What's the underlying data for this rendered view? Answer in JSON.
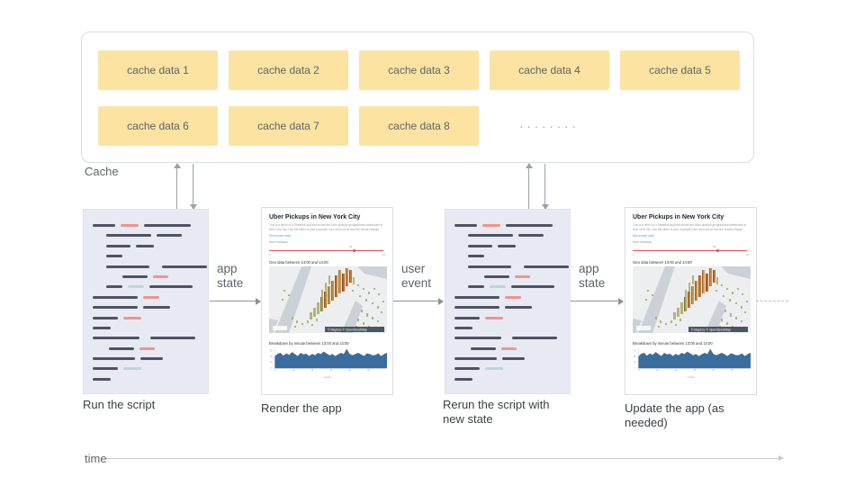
{
  "cache": {
    "label": "Cache",
    "boxes": [
      "cache data 1",
      "cache data 2",
      "cache data 3",
      "cache data 4",
      "cache data 5",
      "cache data 6",
      "cache data 7",
      "cache data 8"
    ],
    "dots": "········"
  },
  "flow": {
    "arrow1_label": "app state",
    "arrow2_label": "user event",
    "arrow3_label": "app state"
  },
  "captions": {
    "script1": "Run the script",
    "app1": "Render the app",
    "script2": "Rerun the script with new state",
    "app2": "Update the app (as needed)"
  },
  "timeline": {
    "label": "time"
  },
  "script_panel": {
    "lines": [
      {
        "ind": 10,
        "seg": [
          [
            "d",
            25
          ],
          [
            "r",
            20
          ],
          [
            "d",
            52
          ]
        ]
      },
      {
        "ind": 25,
        "seg": [
          [
            "d",
            50
          ],
          [
            "d",
            28
          ]
        ]
      },
      {
        "ind": 25,
        "seg": [
          [
            "d",
            27
          ],
          [
            "d",
            20
          ]
        ]
      },
      {
        "ind": 25,
        "seg": [
          [
            "d",
            18
          ]
        ]
      },
      {
        "ind": 25,
        "seg": [
          [
            "d",
            48
          ],
          [
            "d",
            50,
            8
          ]
        ]
      },
      {
        "ind": 43,
        "seg": [
          [
            "d",
            28
          ],
          [
            "r",
            17
          ]
        ]
      },
      {
        "ind": 25,
        "seg": [
          [
            "d",
            18
          ],
          [
            "t",
            18
          ],
          [
            "d",
            48
          ]
        ]
      },
      {
        "ind": 10,
        "seg": [
          [
            "d",
            50
          ],
          [
            "r",
            18
          ]
        ]
      },
      {
        "ind": 10,
        "seg": [
          [
            "d",
            50
          ],
          [
            "d",
            30
          ]
        ]
      },
      {
        "ind": 10,
        "seg": [
          [
            "d",
            28
          ],
          [
            "r",
            20
          ]
        ]
      },
      {
        "ind": 10,
        "seg": [
          [
            "d",
            20
          ]
        ]
      },
      {
        "ind": 10,
        "seg": [
          [
            "d",
            52
          ],
          [
            "d",
            50,
            6
          ]
        ]
      },
      {
        "ind": 28,
        "seg": [
          [
            "d",
            28
          ],
          [
            "r",
            17
          ]
        ]
      },
      {
        "ind": 10,
        "seg": [
          [
            "d",
            47
          ],
          [
            "d",
            25
          ]
        ]
      },
      {
        "ind": 10,
        "seg": [
          [
            "d",
            28
          ],
          [
            "t",
            20
          ]
        ]
      },
      {
        "ind": 10,
        "seg": [
          [
            "d",
            20
          ]
        ]
      }
    ]
  },
  "app_preview": {
    "title": "Uber Pickups in New York City",
    "description": "This is a demo of a Streamlit app that shows the Uber pickups geographical distribution in New York City. Use the slider to pick a specific hour and look at how the charts change.",
    "link": "See source code",
    "slider_label": "Hour of pickup",
    "slider_value": "13",
    "slider_min": "0",
    "slider_max": "23",
    "geo_caption": "Geo data between 13:00 and 14:00",
    "histogram_caption": "Breakdown by minute between 13:00 and 14:00",
    "histogram_xlabel": "minute",
    "map_attribution": "© Mapbox © OpenStreetMap",
    "histogram_values": [
      0.58,
      0.72,
      0.76,
      0.62,
      0.73,
      0.66,
      0.8,
      0.7,
      0.6,
      0.76,
      0.68,
      0.72,
      0.6,
      0.71,
      0.64,
      0.76,
      0.7,
      0.82,
      0.73,
      0.64,
      0.7,
      0.6,
      0.68,
      0.76,
      0.7,
      0.96,
      0.72,
      0.64,
      0.7,
      0.76,
      0.68,
      0.6,
      0.73,
      0.7,
      0.64,
      0.66,
      0.73,
      0.6,
      0.7,
      0.76
    ]
  },
  "colors": {
    "cache_box": "#fce3a2",
    "script_panel_bg": "#e8eaf3",
    "code_dark": "#4e5362",
    "code_red": "#f2928e",
    "code_teal": "#b8dad5",
    "slider_red": "#e94f5c",
    "histogram_blue": "#3a6d9e",
    "arrow_gray": "#9aa0a6"
  }
}
